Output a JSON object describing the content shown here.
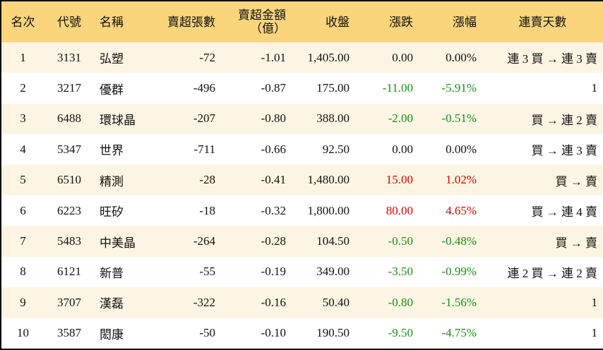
{
  "table": {
    "columns": [
      "名次",
      "代號",
      "名稱",
      "賣超張數",
      "賣超金額\n（億）",
      "收盤",
      "漲跌",
      "漲幅",
      "連賣天數"
    ],
    "rows": [
      [
        "1",
        "3131",
        "弘塑",
        "-72",
        "-1.01",
        "1,405.00",
        "0.00",
        "0.00%",
        "連 3 買 → 連 3 賣"
      ],
      [
        "2",
        "3217",
        "優群",
        "-496",
        "-0.87",
        "175.00",
        "-11.00",
        "-5.91%",
        "1"
      ],
      [
        "3",
        "6488",
        "環球晶",
        "-207",
        "-0.80",
        "388.00",
        "-2.00",
        "-0.51%",
        "買 → 連 2 賣"
      ],
      [
        "4",
        "5347",
        "世界",
        "-711",
        "-0.66",
        "92.50",
        "0.00",
        "0.00%",
        "買 → 連 3 賣"
      ],
      [
        "5",
        "6510",
        "精測",
        "-28",
        "-0.41",
        "1,480.00",
        "15.00",
        "1.02%",
        "買 → 賣"
      ],
      [
        "6",
        "6223",
        "旺矽",
        "-18",
        "-0.32",
        "1,800.00",
        "80.00",
        "4.65%",
        "買 → 連 4 賣"
      ],
      [
        "7",
        "5483",
        "中美晶",
        "-264",
        "-0.28",
        "104.50",
        "-0.50",
        "-0.48%",
        "買 → 賣"
      ],
      [
        "8",
        "6121",
        "新普",
        "-55",
        "-0.19",
        "349.00",
        "-3.50",
        "-0.99%",
        "連 2 買 → 連 2 賣"
      ],
      [
        "9",
        "3707",
        "漢磊",
        "-322",
        "-0.16",
        "50.40",
        "-0.80",
        "-1.56%",
        "1"
      ],
      [
        "10",
        "3587",
        "閎康",
        "-50",
        "-0.10",
        "190.50",
        "-9.50",
        "-4.75%",
        "1"
      ]
    ],
    "colors": {
      "up": "#e00000",
      "down": "#1a8f1a",
      "header": "#fad57c",
      "stripe": "#fdf5e3"
    }
  }
}
